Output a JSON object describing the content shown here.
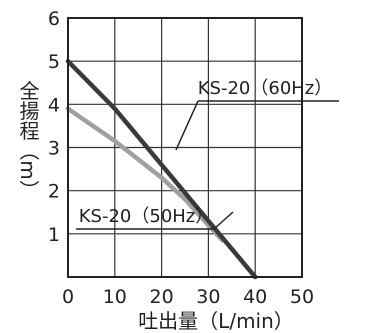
{
  "chart_data": {
    "type": "line",
    "xlabel": "吐出量（L/min）",
    "ylabel": "全揚程（m）",
    "xlim": [
      0,
      50
    ],
    "ylim": [
      0,
      6
    ],
    "xticks": [
      "0",
      "10",
      "20",
      "30",
      "40",
      "50"
    ],
    "yticks": [
      "1",
      "2",
      "3",
      "4",
      "5",
      "6"
    ],
    "grid": true,
    "series": [
      {
        "name": "KS-20（60Hz）",
        "color": "#3a3a3a",
        "points": [
          [
            0,
            5.0
          ],
          [
            10,
            3.9
          ],
          [
            20,
            2.6
          ],
          [
            30,
            1.3
          ],
          [
            40,
            0.0
          ]
        ]
      },
      {
        "name": "KS-20（50Hz）",
        "color": "#a0a0a0",
        "points": [
          [
            0,
            3.9
          ],
          [
            10,
            3.15
          ],
          [
            20,
            2.3
          ],
          [
            25,
            1.8
          ],
          [
            30,
            1.2
          ],
          [
            33,
            0.85
          ]
        ]
      }
    ]
  }
}
